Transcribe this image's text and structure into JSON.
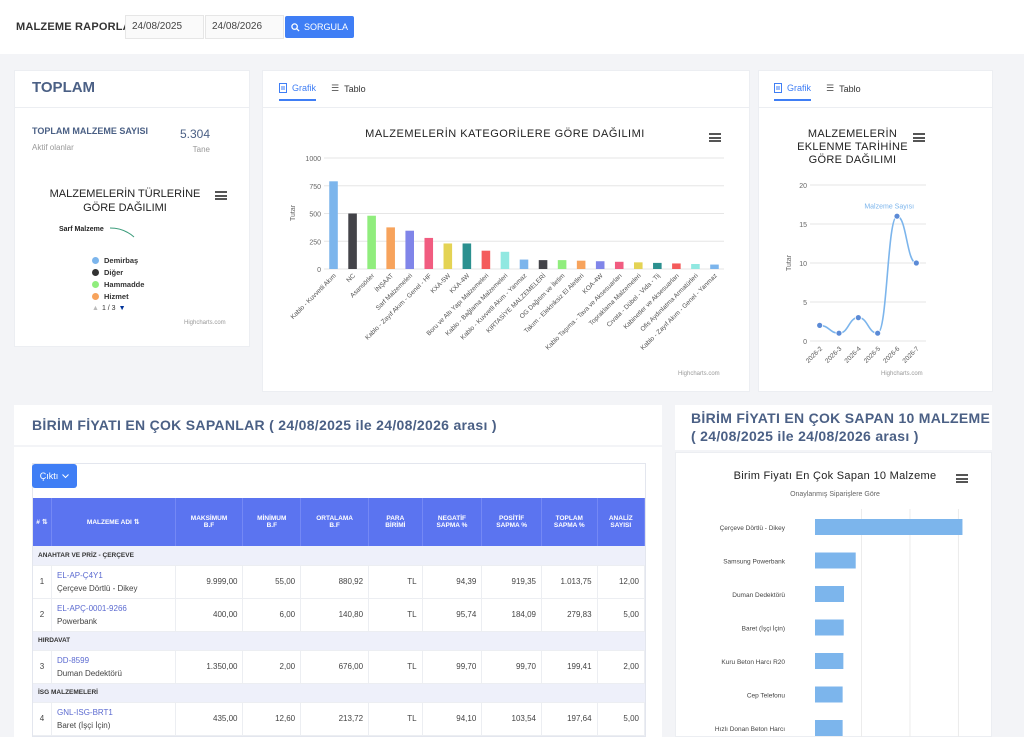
{
  "header": {
    "title": "MALZEME RAPORLARI",
    "date_from": "24/08/2025",
    "date_to": "24/08/2026",
    "search_label": "SORGULA"
  },
  "toplam": {
    "title": "TOPLAM",
    "count_label": "TOPLAM MALZEME SAYISI",
    "sub_label": "Aktif olanlar",
    "count_value": "5.304",
    "unit": "Tane",
    "pie_title_l1": "MALZEMELERİN TÜRLERİNE",
    "pie_title_l2": "GÖRE DAĞILIMI",
    "pie_label": "Sarf Malzeme",
    "legend": [
      {
        "name": "Demirbaş",
        "color": "#7cb5ec"
      },
      {
        "name": "Diğer",
        "color": "#333333"
      },
      {
        "name": "Hammadde",
        "color": "#90ed7d"
      },
      {
        "name": "Hizmet",
        "color": "#f7a35c"
      }
    ],
    "pager": "1 / 3",
    "credit": "Highcharts.com"
  },
  "tabs": {
    "grafik": "Grafik",
    "tablo": "Tablo"
  },
  "chart_data": [
    {
      "type": "bar",
      "title": "MALZEMELERİN KATEGORİLERE GÖRE DAĞILIMI",
      "ylabel": "Tutar",
      "ylim": [
        0,
        1000
      ],
      "yticks": [
        0,
        250,
        500,
        750,
        1000
      ],
      "categories": [
        "Kablo - Kuvvetli Akım",
        "NC",
        "Asansörler",
        "İNŞAAT",
        "Sarf Malzemeleri",
        "Kablo - Zayıf Akım - Genel - HF",
        "KXA-5W",
        "KXA-4W",
        "Boru ve Altı Yapı Malzemeleri",
        "Kablo - Bağlama Malzemeleri",
        "Kablo - Kuvvetli Akım - Yanmaz",
        "KIRTASİYE MALZEMELERİ",
        "OG Dağıtım ve İletim",
        "Takım - Elektriksiz El Aletleri",
        "KOA-4W",
        "Kablo Taşıma - Tava ve Aksesuarları",
        "Topraklama Malzemeleri",
        "Cıvata - Dübel - Vida - Tij",
        "Kabinetler ve Aksesuarları",
        "Ofis Aydınlatma Armatürleri",
        "Kablo - Zayıf Akım - Genel - Yanmaz"
      ],
      "values": [
        790,
        500,
        480,
        375,
        345,
        280,
        230,
        230,
        165,
        155,
        85,
        80,
        80,
        75,
        70,
        65,
        60,
        55,
        50,
        45,
        40
      ],
      "colors": [
        "#7cb5ec",
        "#434348",
        "#90ed7d",
        "#f7a35c",
        "#8085e9",
        "#f15c80",
        "#e4d354",
        "#2b908f",
        "#f45b5b",
        "#91e8e1",
        "#7cb5ec",
        "#434348",
        "#90ed7d",
        "#f7a35c",
        "#8085e9",
        "#f15c80",
        "#e4d354",
        "#2b908f",
        "#f45b5b",
        "#91e8e1",
        "#7cb5ec"
      ],
      "credit": "Highcharts.com"
    },
    {
      "type": "line",
      "title_l1": "MALZEMELERİN",
      "title_l2": "EKLENME TARİHİNE",
      "title_l3": "GÖRE DAĞILIMI",
      "ylabel": "Tutar",
      "ylim": [
        0,
        20
      ],
      "yticks": [
        0,
        5,
        10,
        15,
        20
      ],
      "categories": [
        "2026-2",
        "2026-3",
        "2026-4",
        "2026-5",
        "2026-6",
        "2026-7"
      ],
      "series": [
        {
          "name": "Malzeme Sayısı",
          "values": [
            2,
            1,
            3,
            1,
            16,
            10
          ]
        }
      ],
      "color": "#7cb5ec",
      "credit": "Highcharts.com"
    },
    {
      "type": "bar",
      "title": "Birim Fiyatı En Çok Sapan 10 Malzeme",
      "subtitle": "Onaylanmış Siparişlere Göre",
      "categories": [
        "Çerçeve Dörtlü - Dikey",
        "Samsung Powerbank",
        "Duman Dedektörü",
        "Baret (İşçi İçin)",
        "Kuru Beton Harcı R20",
        "Cep Telefonu",
        "Hızlı Donan Beton Harcı"
      ],
      "values": [
        1013.75,
        279.83,
        199.41,
        197.64,
        195,
        190,
        190
      ],
      "xmax": 1100,
      "color": "#7cb5ec"
    }
  ],
  "section": {
    "left_title": "BİRİM FİYATI EN ÇOK SAPANLAR ( 24/08/2025 ile 24/08/2026 arası )",
    "right_title_l1": "BİRİM FİYATI EN ÇOK SAPAN 10 MALZEME",
    "right_title_l2": "( 24/08/2025 ile 24/08/2026 arası )"
  },
  "table": {
    "export_label": "Çıktı",
    "headers": [
      {
        "l1": "#",
        "l2": ""
      },
      {
        "l1": "MALZEME ADI",
        "l2": ""
      },
      {
        "l1": "MAKSİMUM",
        "l2": "B.F"
      },
      {
        "l1": "MİNİMUM",
        "l2": "B.F"
      },
      {
        "l1": "ORTALAMA",
        "l2": "B.F"
      },
      {
        "l1": "PARA",
        "l2": "BİRİMİ"
      },
      {
        "l1": "NEGATİF",
        "l2": "SAPMA %"
      },
      {
        "l1": "POSİTİF",
        "l2": "SAPMA %"
      },
      {
        "l1": "TOPLAM",
        "l2": "SAPMA %"
      },
      {
        "l1": "ANALİZ",
        "l2": "SAYISI"
      }
    ],
    "groups": [
      {
        "name": "ANAHTAR VE PRİZ - ÇERÇEVE",
        "rows": [
          {
            "no": "1",
            "code": "EL-AP-Ç4Y1",
            "name": "Çerçeve Dörtlü - Dikey",
            "max": "9.999,00",
            "min": "55,00",
            "avg": "880,92",
            "cur": "TL",
            "neg": "94,39",
            "pos": "919,35",
            "tot": "1.013,75",
            "cnt": "12,00"
          },
          {
            "no": "2",
            "code": "EL-APÇ-0001-9266",
            "name": "Powerbank",
            "max": "400,00",
            "min": "6,00",
            "avg": "140,80",
            "cur": "TL",
            "neg": "95,74",
            "pos": "184,09",
            "tot": "279,83",
            "cnt": "5,00"
          }
        ]
      },
      {
        "name": "HIRDAVAT",
        "rows": [
          {
            "no": "3",
            "code": "DD-8599",
            "name": "Duman Dedektörü",
            "max": "1.350,00",
            "min": "2,00",
            "avg": "676,00",
            "cur": "TL",
            "neg": "99,70",
            "pos": "99,70",
            "tot": "199,41",
            "cnt": "2,00"
          }
        ]
      },
      {
        "name": "İSG MALZEMELERİ",
        "rows": [
          {
            "no": "4",
            "code": "GNL-ISG-BRT1",
            "name": "Baret (İşçi İçin)",
            "max": "435,00",
            "min": "12,60",
            "avg": "213,72",
            "cur": "TL",
            "neg": "94,10",
            "pos": "103,54",
            "tot": "197,64",
            "cnt": "5,00"
          }
        ]
      }
    ]
  }
}
